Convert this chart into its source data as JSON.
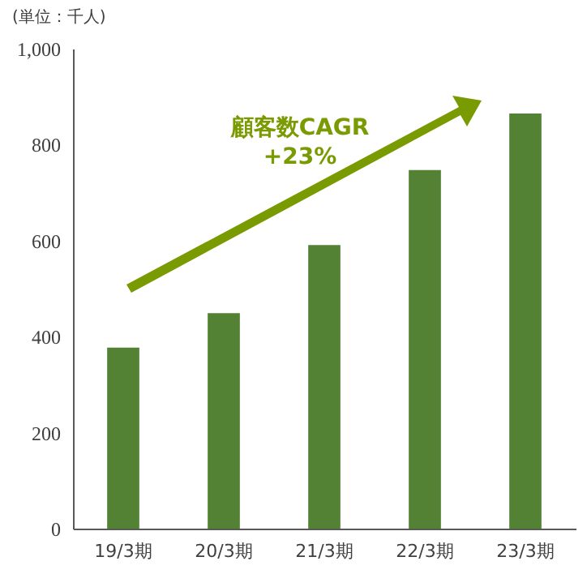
{
  "chart_data": {
    "type": "bar",
    "ylabel": "(単位：千人)",
    "categories": [
      "19/3期",
      "20/3期",
      "21/3期",
      "22/3期",
      "23/3期"
    ],
    "values": [
      377,
      449,
      591,
      747,
      865
    ],
    "color": "#548235",
    "ylim": [
      0,
      1000
    ],
    "yticks": [
      0,
      200,
      400,
      600,
      800,
      {
        "value": 1000,
        "label": "1,000"
      }
    ],
    "grid": false,
    "annotations": [
      "顧客数CAGR\n+23%"
    ]
  }
}
